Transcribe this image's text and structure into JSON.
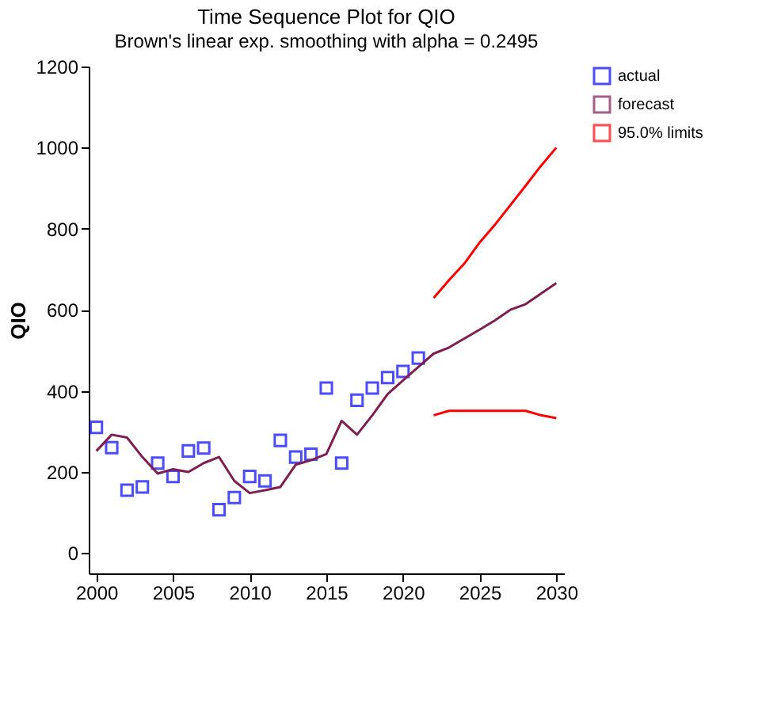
{
  "chart_data": {
    "type": "line",
    "title": "Time Sequence Plot for QIO",
    "subtitle": "Brown's linear exp. smoothing with alpha = 0.2495",
    "ylabel": "QIO",
    "xlim": [
      1999.5,
      2030.5
    ],
    "xticks": [
      2000,
      2005,
      2010,
      2015,
      2020,
      2025,
      2030
    ],
    "ylim": [
      -50,
      1200
    ],
    "yticks": [
      0,
      200,
      400,
      600,
      800,
      1000,
      1200
    ],
    "grid": false,
    "legend": "right",
    "series": [
      {
        "name": "actual",
        "type": "scatter",
        "marker": "square",
        "color": "#0000ff",
        "x": [
          2000,
          2001,
          2002,
          2003,
          2004,
          2005,
          2006,
          2007,
          2008,
          2009,
          2010,
          2011,
          2012,
          2013,
          2014,
          2015,
          2016,
          2017,
          2018,
          2019,
          2020,
          2021
        ],
        "values": [
          310,
          260,
          155,
          163,
          222,
          189,
          252,
          259,
          107,
          137,
          189,
          178,
          278,
          237,
          244,
          407,
          222,
          377,
          407,
          433,
          448,
          481
        ]
      },
      {
        "name": "forecast",
        "color": "#7f1f4f",
        "x": [
          2000,
          2001,
          2002,
          2003,
          2004,
          2005,
          2006,
          2007,
          2008,
          2009,
          2010,
          2011,
          2012,
          2013,
          2014,
          2015,
          2016,
          2017,
          2018,
          2019,
          2020,
          2021,
          2022,
          2023,
          2024,
          2025,
          2026,
          2027,
          2028,
          2029,
          2030
        ],
        "values": [
          252,
          292,
          285,
          237,
          196,
          207,
          200,
          222,
          237,
          178,
          148,
          155,
          163,
          218,
          229,
          244,
          326,
          292,
          340,
          392,
          426,
          459,
          492,
          507,
          529,
          551,
          574,
          600,
          614,
          640,
          666
        ]
      },
      {
        "name": "95.0% limits",
        "color": "#ff0000",
        "x": [
          2022,
          2023,
          2024,
          2025,
          2026,
          2027,
          2028,
          2029,
          2030
        ],
        "values": [
          629,
          673,
          714,
          766,
          810,
          858,
          906,
          955,
          1000
        ]
      },
      {
        "color": "#ff0000",
        "x": [
          2022,
          2023,
          2024,
          2025,
          2026,
          2027,
          2028,
          2029,
          2030
        ],
        "values": [
          340,
          351,
          351,
          351,
          351,
          351,
          351,
          340,
          333
        ]
      }
    ]
  }
}
